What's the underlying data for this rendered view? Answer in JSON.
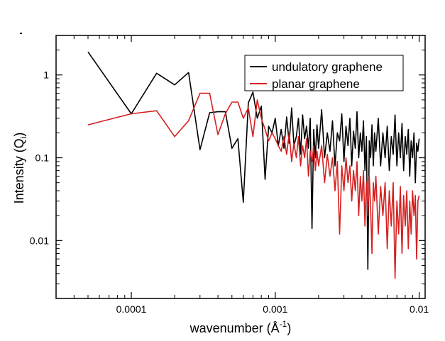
{
  "chart_data": {
    "type": "line",
    "xlabel": "wavenumber (Å",
    "xlabel_exponent": "-1",
    "xlabel_close": ")",
    "ylabel": "Intensity (Q",
    "ylabel_subscript": "i",
    "ylabel_close": ")",
    "x_scale": "log",
    "y_scale": "log",
    "xlim": [
      3e-05,
      0.011
    ],
    "ylim": [
      0.002,
      3
    ],
    "grid": false,
    "legend_position": "top-right",
    "x_ticks": [
      {
        "value": 0.0001,
        "label": "0.0001"
      },
      {
        "value": 0.001,
        "label": "0.001"
      },
      {
        "value": 0.01,
        "label": "0.01"
      }
    ],
    "y_ticks": [
      {
        "value": 1,
        "label": "1"
      },
      {
        "value": 0.1,
        "label": "0.1"
      },
      {
        "value": 0.01,
        "label": "0.01"
      }
    ],
    "series": [
      {
        "name": "undulatory graphene",
        "color": "#000000",
        "points": [
          [
            5e-05,
            1.9
          ],
          [
            0.0001,
            0.34
          ],
          [
            0.00015,
            1.05
          ],
          [
            0.0002,
            0.76
          ],
          [
            0.00025,
            1.07
          ],
          [
            0.0003,
            0.125
          ],
          [
            0.00035,
            0.35
          ],
          [
            0.0004,
            0.36
          ],
          [
            0.00045,
            0.36
          ],
          [
            0.0005,
            0.13
          ],
          [
            0.00055,
            0.17
          ],
          [
            0.0006,
            0.029
          ],
          [
            0.00065,
            0.46
          ],
          [
            0.0007,
            0.62
          ],
          [
            0.00075,
            0.3
          ],
          [
            0.0008,
            0.42
          ],
          [
            0.00085,
            0.055
          ],
          [
            0.0009,
            0.24
          ],
          [
            0.00095,
            0.2
          ],
          [
            0.001,
            0.3
          ],
          [
            0.00105,
            0.14
          ],
          [
            0.0011,
            0.22
          ],
          [
            0.00115,
            0.13
          ],
          [
            0.0012,
            0.31
          ],
          [
            0.00125,
            0.15
          ],
          [
            0.0013,
            0.4
          ],
          [
            0.00135,
            0.14
          ],
          [
            0.0014,
            0.18
          ],
          [
            0.00145,
            0.3
          ],
          [
            0.0015,
            0.11
          ],
          [
            0.00155,
            0.33
          ],
          [
            0.0016,
            0.17
          ],
          [
            0.00165,
            0.24
          ],
          [
            0.0017,
            0.13
          ],
          [
            0.00175,
            0.3
          ],
          [
            0.0018,
            0.014
          ],
          [
            0.00185,
            0.22
          ],
          [
            0.0019,
            0.1
          ],
          [
            0.00195,
            0.25
          ],
          [
            0.002,
            0.13
          ],
          [
            0.0021,
            0.38
          ],
          [
            0.0022,
            0.1
          ],
          [
            0.0023,
            0.2
          ],
          [
            0.0024,
            0.12
          ],
          [
            0.0025,
            0.28
          ],
          [
            0.0026,
            0.08
          ],
          [
            0.0027,
            0.2
          ],
          [
            0.0028,
            0.16
          ],
          [
            0.0029,
            0.34
          ],
          [
            0.003,
            0.09
          ],
          [
            0.0031,
            0.24
          ],
          [
            0.0032,
            0.14
          ],
          [
            0.0033,
            0.3
          ],
          [
            0.0034,
            0.08
          ],
          [
            0.0035,
            0.21
          ],
          [
            0.0036,
            0.13
          ],
          [
            0.0037,
            0.36
          ],
          [
            0.0038,
            0.1
          ],
          [
            0.0039,
            0.2
          ],
          [
            0.004,
            0.12
          ],
          [
            0.0041,
            0.28
          ],
          [
            0.0042,
            0.07
          ],
          [
            0.0043,
            0.18
          ],
          [
            0.0044,
            0.0045
          ],
          [
            0.0045,
            0.16
          ],
          [
            0.0046,
            0.1
          ],
          [
            0.0047,
            0.25
          ],
          [
            0.0048,
            0.08
          ],
          [
            0.0049,
            0.2
          ],
          [
            0.005,
            0.12
          ],
          [
            0.0052,
            0.3
          ],
          [
            0.0054,
            0.08
          ],
          [
            0.0056,
            0.2
          ],
          [
            0.0058,
            0.1
          ],
          [
            0.006,
            0.24
          ],
          [
            0.0062,
            0.07
          ],
          [
            0.0064,
            0.18
          ],
          [
            0.0066,
            0.11
          ],
          [
            0.0068,
            0.33
          ],
          [
            0.007,
            0.08
          ],
          [
            0.0072,
            0.2
          ],
          [
            0.0074,
            0.1
          ],
          [
            0.0076,
            0.26
          ],
          [
            0.0078,
            0.07
          ],
          [
            0.008,
            0.18
          ],
          [
            0.0082,
            0.11
          ],
          [
            0.0084,
            0.22
          ],
          [
            0.0086,
            0.06
          ],
          [
            0.0088,
            0.16
          ],
          [
            0.009,
            0.1
          ],
          [
            0.0092,
            0.2
          ],
          [
            0.0094,
            0.05
          ],
          [
            0.0096,
            0.15
          ],
          [
            0.0098,
            0.12
          ],
          [
            0.01,
            0.17
          ]
        ]
      },
      {
        "name": "planar graphene",
        "color": "#d62020",
        "points": [
          [
            5e-05,
            0.25
          ],
          [
            0.0001,
            0.34
          ],
          [
            0.00015,
            0.37
          ],
          [
            0.0002,
            0.18
          ],
          [
            0.00025,
            0.28
          ],
          [
            0.0003,
            0.6
          ],
          [
            0.00035,
            0.6
          ],
          [
            0.0004,
            0.19
          ],
          [
            0.00045,
            0.34
          ],
          [
            0.0005,
            0.47
          ],
          [
            0.00055,
            0.47
          ],
          [
            0.0006,
            0.3
          ],
          [
            0.00065,
            0.4
          ],
          [
            0.0007,
            0.18
          ],
          [
            0.00075,
            0.5
          ],
          [
            0.0008,
            0.3
          ],
          [
            0.00085,
            0.22
          ],
          [
            0.0009,
            0.16
          ],
          [
            0.00095,
            0.2
          ],
          [
            0.001,
            0.17
          ],
          [
            0.00105,
            0.14
          ],
          [
            0.0011,
            0.12
          ],
          [
            0.00115,
            0.18
          ],
          [
            0.0012,
            0.11
          ],
          [
            0.00125,
            0.2
          ],
          [
            0.0013,
            0.09
          ],
          [
            0.00135,
            0.15
          ],
          [
            0.0014,
            0.1
          ],
          [
            0.00145,
            0.18
          ],
          [
            0.0015,
            0.08
          ],
          [
            0.00155,
            0.14
          ],
          [
            0.0016,
            0.1
          ],
          [
            0.00165,
            0.17
          ],
          [
            0.0017,
            0.06
          ],
          [
            0.00175,
            0.12
          ],
          [
            0.0018,
            0.09
          ],
          [
            0.00185,
            0.14
          ],
          [
            0.0019,
            0.07
          ],
          [
            0.00195,
            0.12
          ],
          [
            0.002,
            0.08
          ],
          [
            0.0021,
            0.14
          ],
          [
            0.0022,
            0.05
          ],
          [
            0.0023,
            0.11
          ],
          [
            0.0024,
            0.06
          ],
          [
            0.0025,
            0.1
          ],
          [
            0.0026,
            0.04
          ],
          [
            0.0027,
            0.09
          ],
          [
            0.0028,
            0.012
          ],
          [
            0.0029,
            0.08
          ],
          [
            0.003,
            0.04
          ],
          [
            0.0031,
            0.1
          ],
          [
            0.0032,
            0.05
          ],
          [
            0.0033,
            0.08
          ],
          [
            0.0034,
            0.03
          ],
          [
            0.0035,
            0.07
          ],
          [
            0.0036,
            0.04
          ],
          [
            0.0037,
            0.09
          ],
          [
            0.0038,
            0.02
          ],
          [
            0.0039,
            0.06
          ],
          [
            0.004,
            0.03
          ],
          [
            0.0041,
            0.07
          ],
          [
            0.0042,
            0.015
          ],
          [
            0.0043,
            0.05
          ],
          [
            0.0044,
            0.02
          ],
          [
            0.0045,
            0.06
          ],
          [
            0.0046,
            0.025
          ],
          [
            0.0047,
            0.007
          ],
          [
            0.0048,
            0.05
          ],
          [
            0.0049,
            0.03
          ],
          [
            0.005,
            0.06
          ],
          [
            0.0052,
            0.012
          ],
          [
            0.0054,
            0.045
          ],
          [
            0.0056,
            0.02
          ],
          [
            0.0058,
            0.05
          ],
          [
            0.006,
            0.008
          ],
          [
            0.0062,
            0.04
          ],
          [
            0.0064,
            0.015
          ],
          [
            0.0066,
            0.05
          ],
          [
            0.0068,
            0.0035
          ],
          [
            0.007,
            0.03
          ],
          [
            0.0072,
            0.012
          ],
          [
            0.0074,
            0.045
          ],
          [
            0.0076,
            0.007
          ],
          [
            0.0078,
            0.035
          ],
          [
            0.008,
            0.015
          ],
          [
            0.0082,
            0.04
          ],
          [
            0.0084,
            0.008
          ],
          [
            0.0086,
            0.03
          ],
          [
            0.0088,
            0.012
          ],
          [
            0.009,
            0.04
          ],
          [
            0.0092,
            0.02
          ],
          [
            0.0094,
            0.035
          ],
          [
            0.0096,
            0.006
          ],
          [
            0.0098,
            0.03
          ],
          [
            0.01,
            0.035
          ]
        ]
      }
    ]
  }
}
